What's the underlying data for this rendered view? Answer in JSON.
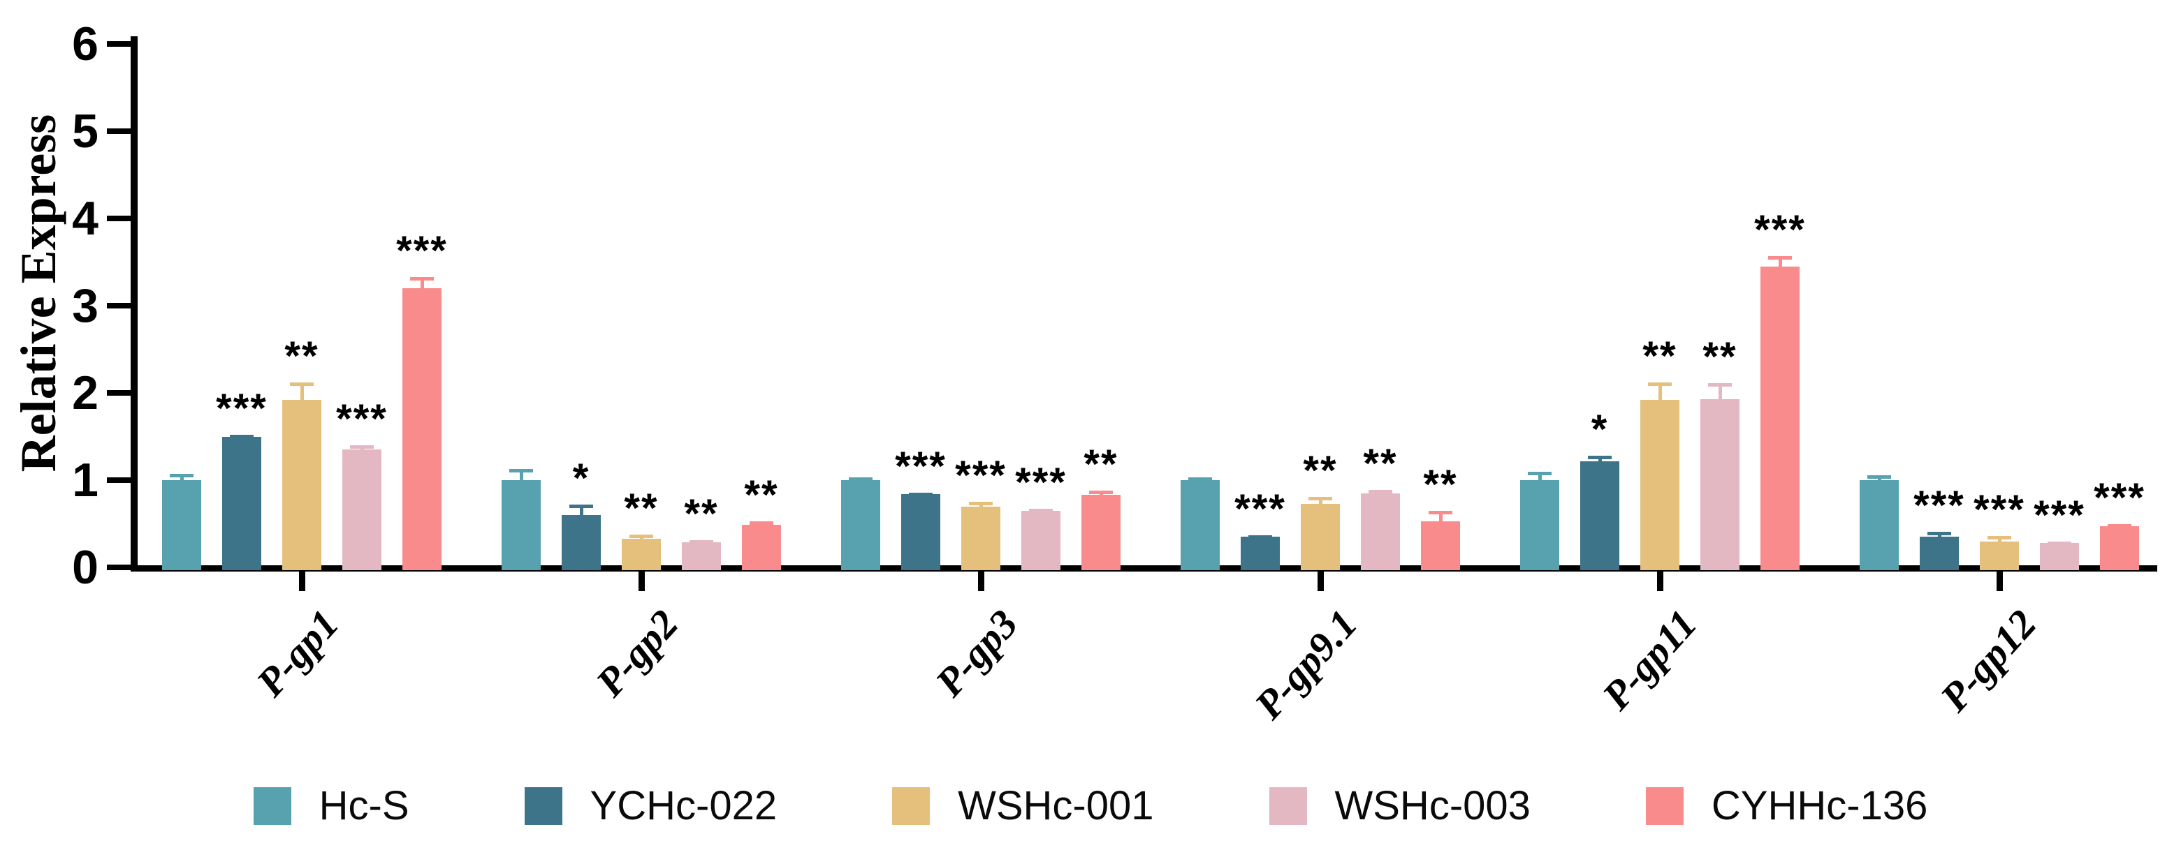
{
  "chart_data": {
    "type": "bar",
    "title": "",
    "ylabel": "Relative Express",
    "xlabel": "",
    "ylim": [
      0,
      6
    ],
    "yticks": [
      "0",
      "1",
      "2",
      "3",
      "4",
      "5",
      "6"
    ],
    "categories": [
      "P-gp1",
      "P-gp2",
      "P-gp3",
      "P-gp9.1",
      "P-gp11",
      "P-gp12"
    ],
    "grid": false,
    "legend_position": "bottom",
    "error_bars": "upper",
    "axis_color": "#000000",
    "background_color": "#ffffff",
    "significance_color": "#000000",
    "series": [
      {
        "name": "Hc-S",
        "color": "#58a1ae",
        "values": [
          1.0,
          1.0,
          1.0,
          1.0,
          1.0,
          1.0
        ],
        "errors": [
          0.07,
          0.13,
          0.03,
          0.03,
          0.1,
          0.06
        ],
        "sig": [
          "",
          "",
          "",
          "",
          "",
          ""
        ]
      },
      {
        "name": "YCHc-022",
        "color": "#3d7489",
        "values": [
          1.5,
          0.6,
          0.84,
          0.35,
          1.22,
          0.35
        ],
        "errors": [
          0.02,
          0.12,
          0.02,
          0.02,
          0.06,
          0.06
        ],
        "sig": [
          "***",
          "*",
          "***",
          "***",
          "*",
          "***"
        ]
      },
      {
        "name": "WSHc-001",
        "color": "#e5c07d",
        "values": [
          1.92,
          0.33,
          0.7,
          0.73,
          1.92,
          0.3
        ],
        "errors": [
          0.2,
          0.05,
          0.05,
          0.08,
          0.2,
          0.06
        ],
        "sig": [
          "**",
          "**",
          "***",
          "**",
          "**",
          "***"
        ]
      },
      {
        "name": "WSHc-003",
        "color": "#e3b8c2",
        "values": [
          1.35,
          0.29,
          0.65,
          0.85,
          1.93,
          0.28
        ],
        "errors": [
          0.05,
          0.02,
          0.02,
          0.04,
          0.18,
          0.02
        ],
        "sig": [
          "***",
          "**",
          "***",
          "**",
          "**",
          "***"
        ]
      },
      {
        "name": "CYHHc-136",
        "color": "#fa8b8c",
        "values": [
          3.2,
          0.49,
          0.83,
          0.53,
          3.45,
          0.47
        ],
        "errors": [
          0.13,
          0.04,
          0.05,
          0.12,
          0.12,
          0.03
        ],
        "sig": [
          "***",
          "**",
          "**",
          "**",
          "***",
          "***"
        ]
      }
    ]
  }
}
